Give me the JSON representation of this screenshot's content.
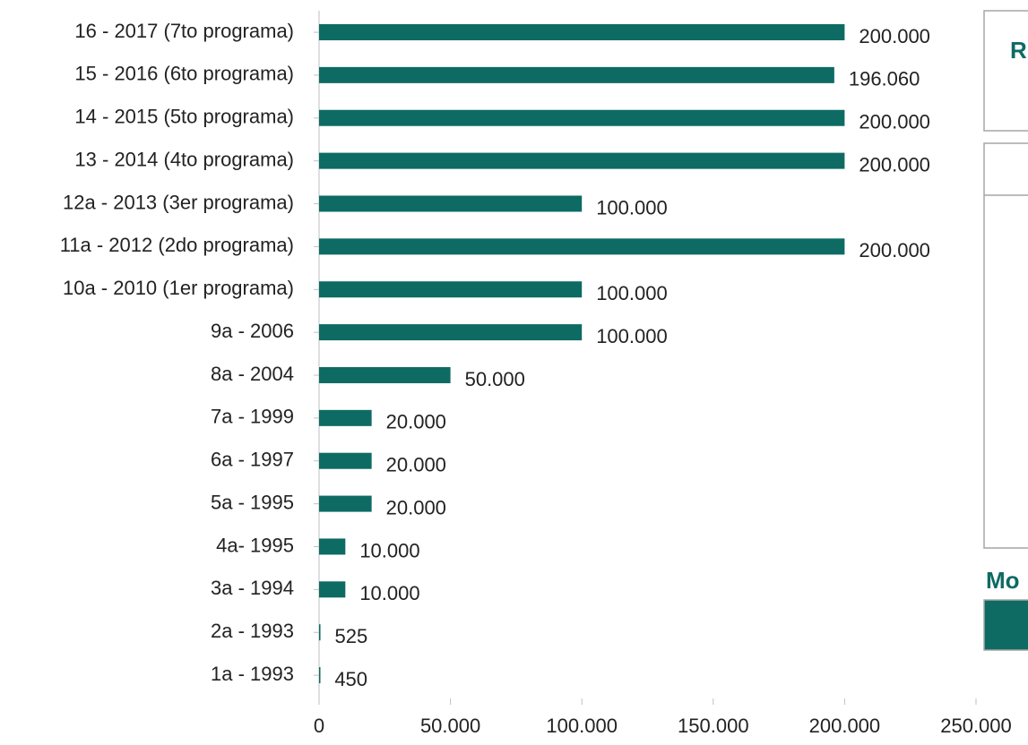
{
  "chart_data": {
    "type": "hbar",
    "categories": [
      "16 - 2017 (7to programa)",
      "15 - 2016 (6to programa)",
      "14 - 2015 (5to programa)",
      "13 - 2014 (4to programa)",
      "12a - 2013 (3er programa)",
      "11a - 2012 (2do programa)",
      "10a - 2010 (1er programa)",
      "9a - 2006",
      "8a - 2004",
      "7a - 1999",
      "6a - 1997",
      "5a - 1995",
      "4a- 1995",
      "3a - 1994",
      "2a - 1993",
      "1a - 1993"
    ],
    "values": [
      200000,
      196060,
      200000,
      200000,
      100000,
      200000,
      100000,
      100000,
      50000,
      20000,
      20000,
      20000,
      10000,
      10000,
      525,
      450
    ],
    "value_labels": [
      "200.000",
      "196.060",
      "200.000",
      "200.000",
      "100.000",
      "200.000",
      "100.000",
      "100.000",
      "50.000",
      "20.000",
      "20.000",
      "20.000",
      "10.000",
      "10.000",
      "525",
      "450"
    ],
    "color": "#0d6b63",
    "xlim": [
      0,
      250000
    ],
    "xticks": [
      0,
      {
        "value": 50000,
        "label": "50.000"
      },
      {
        "value": 100000,
        "label": "100.000"
      },
      {
        "value": 150000,
        "label": "150.000"
      },
      {
        "value": 200000,
        "label": "200.000"
      },
      {
        "value": 250000,
        "label": "250.000"
      }
    ],
    "side_labels": [
      "R",
      "Mo"
    ]
  }
}
